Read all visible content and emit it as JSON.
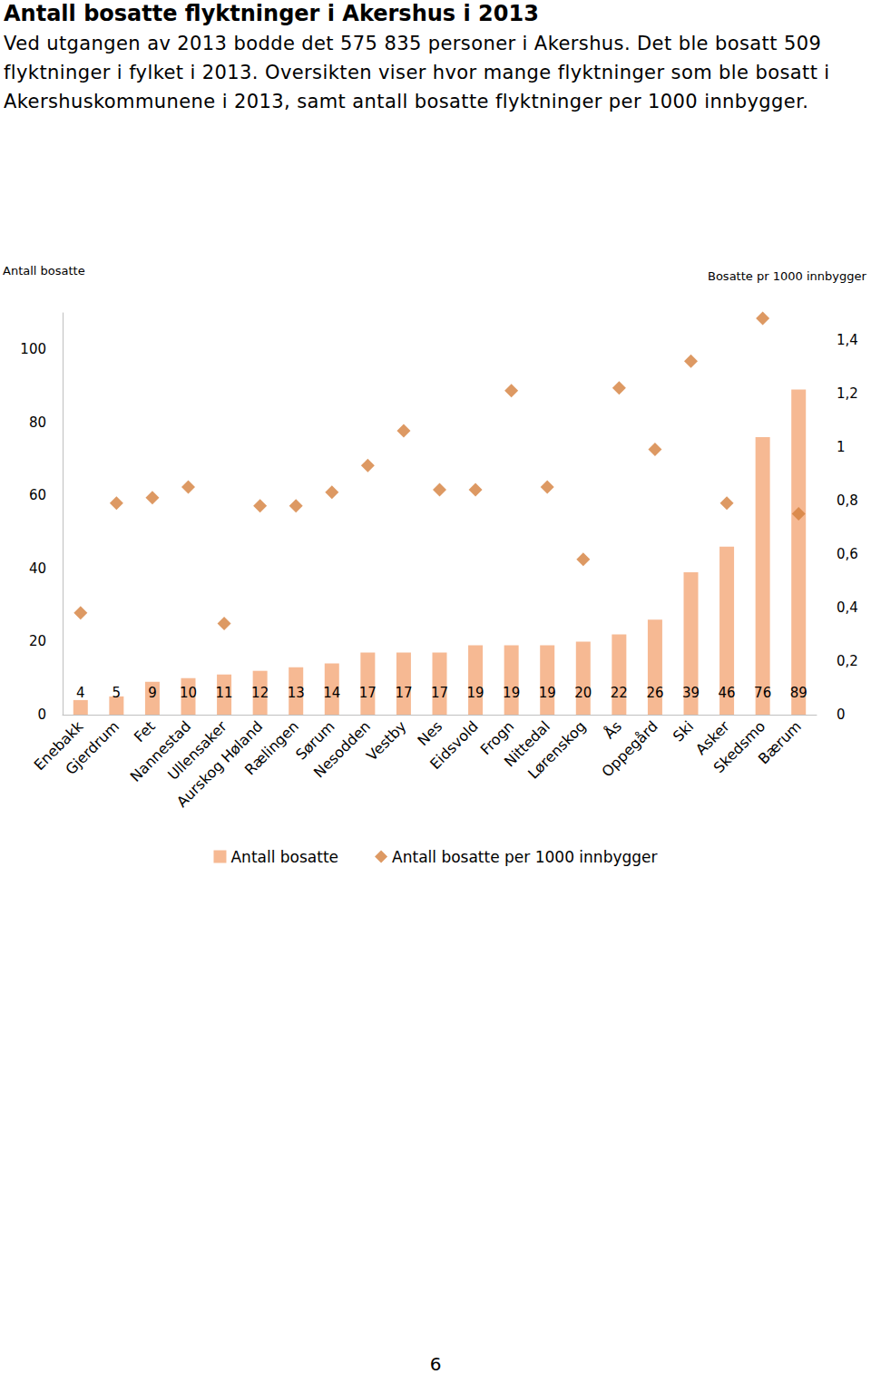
{
  "header": {
    "title": "Antall bosatte flyktninger i Akershus i 2013",
    "text": "Ved utgangen av 2013 bodde det 575 835 personer i Akershus. Det ble bosatt 509 flyktninger i fylket i 2013. Oversikten viser hvor mange flyktninger som ble bosatt i Akershuskommunene i 2013, samt antall bosatte flyktninger per 1000 innbygger."
  },
  "page_number": "6",
  "chart_data": {
    "type": "bar",
    "ylabel": "Antall bosatte",
    "y2label": "Bosatte pr 1000 innbygger",
    "categories": [
      "Enebakk",
      "Gjerdrum",
      "Fet",
      "Nannestad",
      "Ullensaker",
      "Aurskog Høland",
      "Rælingen",
      "Sørum",
      "Nesodden",
      "Vestby",
      "Nes",
      "Eidsvold",
      "Frogn",
      "Nittedal",
      "Lørenskog",
      "Ås",
      "Oppegård",
      "Ski",
      "Asker",
      "Skedsmo",
      "Bærum"
    ],
    "series": [
      {
        "name": "Antall bosatte",
        "type": "bar",
        "color": "#f6b993",
        "data_labels": true,
        "values": [
          4,
          5,
          9,
          10,
          11,
          12,
          13,
          14,
          17,
          17,
          17,
          19,
          19,
          19,
          20,
          22,
          26,
          39,
          46,
          76,
          89
        ]
      },
      {
        "name": "Antall bosatte per 1000 innbygger",
        "type": "scatter",
        "marker": "diamond",
        "color": "#d4803c",
        "axis": "y2",
        "values": [
          0.38,
          0.79,
          0.81,
          0.85,
          0.34,
          0.78,
          0.78,
          0.83,
          0.93,
          1.06,
          0.84,
          0.84,
          1.21,
          0.85,
          0.58,
          1.22,
          0.99,
          1.32,
          0.79,
          1.48,
          0.75
        ]
      }
    ],
    "ylim": [
      0,
      110
    ],
    "yticks": [
      0,
      20,
      40,
      60,
      80,
      100
    ],
    "y2lim": [
      0,
      1.5
    ],
    "y2ticks": [
      0,
      {
        "value": 0.2,
        "label": "0,2"
      },
      {
        "value": 0.4,
        "label": "0,4"
      },
      {
        "value": 0.6,
        "label": "0,6"
      },
      {
        "value": 0.8,
        "label": "0,8"
      },
      1,
      {
        "value": 1.2,
        "label": "1,2"
      },
      {
        "value": 1.4,
        "label": "1,4"
      }
    ],
    "grid": false,
    "legend": "bottom"
  }
}
